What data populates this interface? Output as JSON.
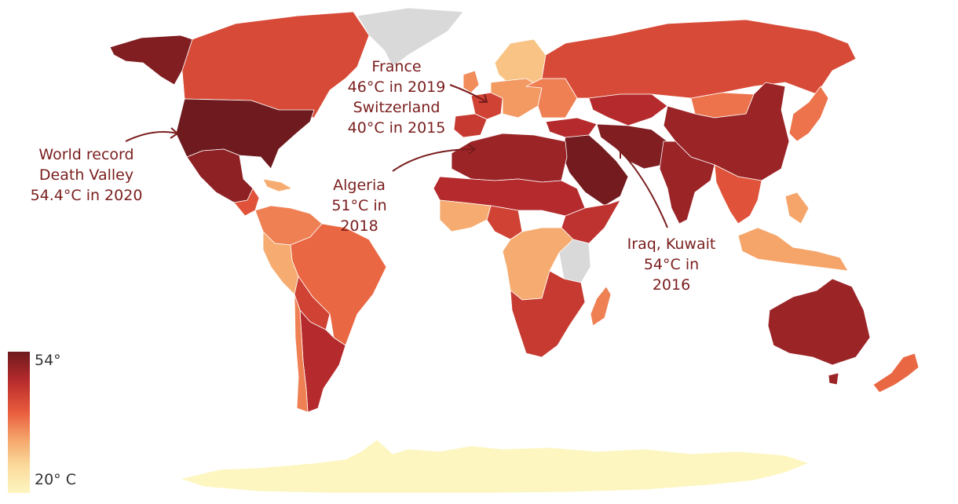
{
  "colors": {
    "ocean": "#ffffff",
    "no_data": "#d9d9d9",
    "scale_low": "#fdf6c0",
    "scale_high": "#6e1a1e",
    "annotation": "#7a1d1d"
  },
  "legend": {
    "max_label": "54°",
    "min_label": "20° C"
  },
  "annotations": {
    "usa": {
      "lines": [
        "World record",
        "Death Valley",
        "54.4°C in 2020"
      ]
    },
    "europe": {
      "lines": [
        "France",
        "46°C in 2019",
        "Switzerland",
        "40°C in 2015"
      ]
    },
    "algeria": {
      "lines": [
        "Algeria",
        "51°C in",
        "2018"
      ]
    },
    "iraq": {
      "lines": [
        "Iraq, Kuwait",
        "54°C in",
        "2016"
      ]
    }
  },
  "regions": [
    {
      "name": "Alaska",
      "temp": 53
    },
    {
      "name": "Canada",
      "temp": 45
    },
    {
      "name": "Greenland",
      "temp": null
    },
    {
      "name": "United States",
      "temp": 54.4
    },
    {
      "name": "Mexico",
      "temp": 52
    },
    {
      "name": "Central America",
      "temp": 44
    },
    {
      "name": "Caribbean",
      "temp": 36
    },
    {
      "name": "Venezuela / Colombia",
      "temp": 40
    },
    {
      "name": "Brazil",
      "temp": 42
    },
    {
      "name": "Peru / Ecuador",
      "temp": 36
    },
    {
      "name": "Bolivia / Paraguay",
      "temp": 46
    },
    {
      "name": "Argentina",
      "temp": 49
    },
    {
      "name": "Chile",
      "temp": 40
    },
    {
      "name": "Scandinavia",
      "temp": 33
    },
    {
      "name": "United Kingdom",
      "temp": 39
    },
    {
      "name": "France",
      "temp": 46
    },
    {
      "name": "Spain / Portugal",
      "temp": 47
    },
    {
      "name": "Central Europe",
      "temp": 38
    },
    {
      "name": "Eastern Europe",
      "temp": 40
    },
    {
      "name": "Russia",
      "temp": 45
    },
    {
      "name": "Kazakhstan",
      "temp": 49
    },
    {
      "name": "Mongolia",
      "temp": 41
    },
    {
      "name": "China",
      "temp": 51
    },
    {
      "name": "Turkey",
      "temp": 49
    },
    {
      "name": "Middle East",
      "temp": 54
    },
    {
      "name": "Iran / Pakistan",
      "temp": 53
    },
    {
      "name": "India",
      "temp": 51
    },
    {
      "name": "Southeast Asia",
      "temp": 44
    },
    {
      "name": "Japan / Korea",
      "temp": 41
    },
    {
      "name": "Indonesia / Philippines",
      "temp": 37
    },
    {
      "name": "North Africa",
      "temp": 51
    },
    {
      "name": "Sahel",
      "temp": 49
    },
    {
      "name": "Nigeria",
      "temp": 46
    },
    {
      "name": "West Africa coast",
      "temp": 36
    },
    {
      "name": "Horn of Africa",
      "temp": 48
    },
    {
      "name": "Central Africa",
      "temp": 36
    },
    {
      "name": "Kenya / Tanzania",
      "temp": null
    },
    {
      "name": "Southern Africa",
      "temp": 47
    },
    {
      "name": "Madagascar",
      "temp": 40
    },
    {
      "name": "Australia",
      "temp": 51
    },
    {
      "name": "New Zealand",
      "temp": 42
    },
    {
      "name": "Antarctica",
      "temp": 20
    }
  ]
}
